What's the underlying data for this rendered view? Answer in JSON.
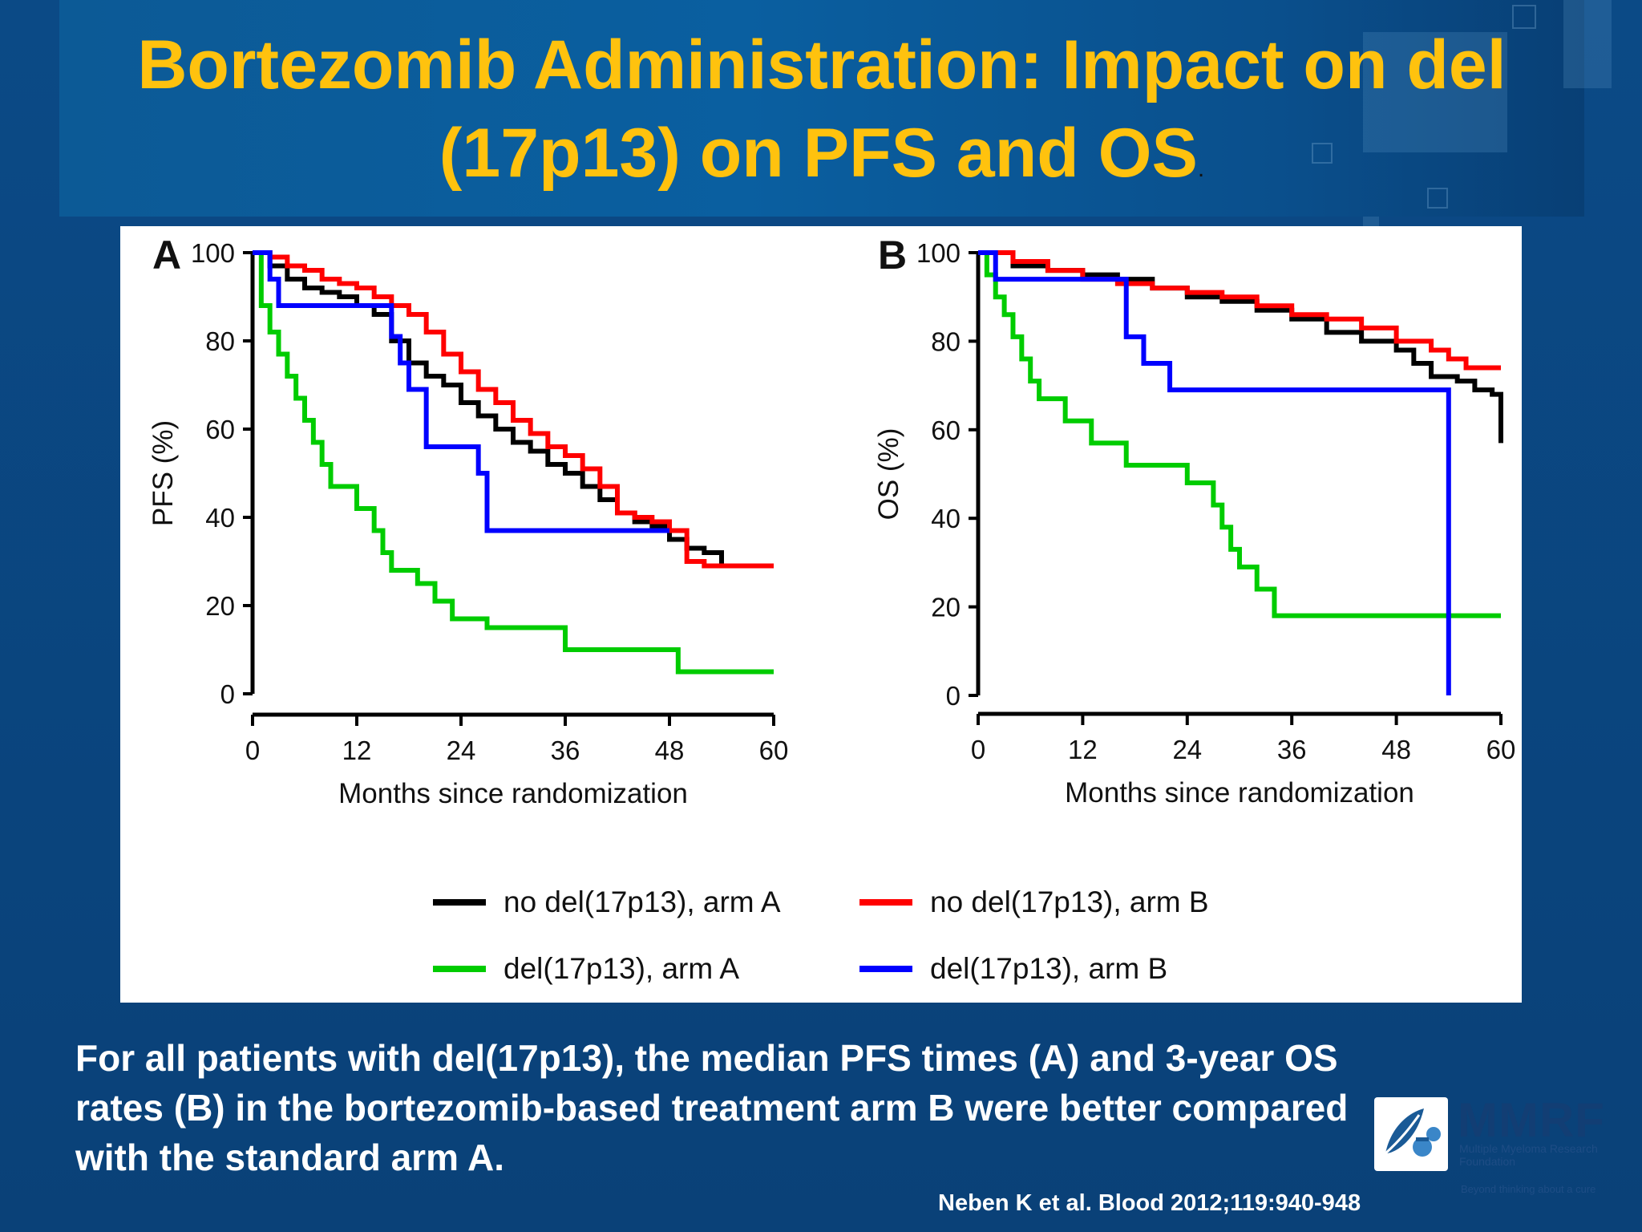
{
  "slide": {
    "title_line1": "Bortezomib Administration: Impact on del",
    "title_line2": "(17p13) on PFS and OS",
    "title_trailing": ".",
    "caption": "For all patients with del(17p13), the median PFS times (A) and 3-year OS rates (B) in the bortezomib-based treatment arm B were better compared with the standard arm A.",
    "citation": "Neben K et al. Blood 2012;119:940-948",
    "logo_text": "MMRF",
    "logo_subtitle": "Multiple Myeloma Research Foundation",
    "logo_tagline": "Beyond thinking about a cure",
    "colors": {
      "title": "#ffc20e",
      "background": "#0b4a86",
      "text": "#ffffff"
    }
  },
  "legend": {
    "entries": [
      {
        "label": "no del(17p13), arm A",
        "color": "#000000"
      },
      {
        "label": "no del(17p13), arm B",
        "color": "#ff0000"
      },
      {
        "label": "del(17p13), arm A",
        "color": "#00cc00"
      },
      {
        "label": "del(17p13), arm B",
        "color": "#0000ff"
      }
    ]
  },
  "chart_data": [
    {
      "type": "line",
      "panel_label": "A",
      "title": "",
      "xlabel": "Months since randomization",
      "ylabel": "PFS (%)",
      "xlim": [
        0,
        60
      ],
      "ylim": [
        0,
        100
      ],
      "xticks": [
        0,
        12,
        24,
        36,
        48,
        60
      ],
      "yticks": [
        0,
        20,
        40,
        60,
        80,
        100
      ],
      "grid": false,
      "step": true,
      "series": [
        {
          "name": "no del(17p13), arm A",
          "color": "#000000",
          "x": [
            0,
            2,
            4,
            6,
            8,
            10,
            12,
            14,
            16,
            18,
            20,
            22,
            24,
            26,
            28,
            30,
            32,
            34,
            36,
            38,
            40,
            42,
            44,
            46,
            48,
            50,
            52,
            54,
            60
          ],
          "y": [
            100,
            97,
            94,
            92,
            91,
            90,
            88,
            86,
            80,
            75,
            72,
            70,
            66,
            63,
            60,
            57,
            55,
            52,
            50,
            47,
            44,
            41,
            39,
            38,
            35,
            33,
            32,
            29,
            29
          ]
        },
        {
          "name": "no del(17p13), arm B",
          "color": "#ff0000",
          "x": [
            0,
            2,
            4,
            6,
            8,
            10,
            12,
            14,
            16,
            18,
            20,
            22,
            24,
            26,
            28,
            30,
            32,
            34,
            36,
            38,
            40,
            42,
            44,
            46,
            48,
            50,
            52,
            60
          ],
          "y": [
            100,
            99,
            97,
            96,
            94,
            93,
            92,
            90,
            88,
            86,
            82,
            77,
            73,
            69,
            66,
            62,
            59,
            56,
            54,
            51,
            47,
            41,
            40,
            39,
            37,
            30,
            29,
            29
          ]
        },
        {
          "name": "del(17p13), arm A",
          "color": "#00cc00",
          "x": [
            0,
            1,
            2,
            3,
            4,
            5,
            6,
            7,
            8,
            9,
            12,
            14,
            15,
            16,
            19,
            21,
            23,
            27,
            36,
            49,
            60
          ],
          "y": [
            100,
            88,
            82,
            77,
            72,
            67,
            62,
            57,
            52,
            47,
            42,
            37,
            32,
            28,
            25,
            21,
            17,
            15,
            10,
            5,
            5
          ]
        },
        {
          "name": "del(17p13), arm B",
          "color": "#0000ff",
          "x": [
            0,
            2,
            3,
            15,
            16,
            17,
            18,
            20,
            25,
            26,
            27,
            36,
            48
          ],
          "y": [
            100,
            94,
            88,
            88,
            81,
            75,
            69,
            56,
            56,
            50,
            37,
            37,
            37
          ]
        }
      ]
    },
    {
      "type": "line",
      "panel_label": "B",
      "title": "",
      "xlabel": "Months since randomization",
      "ylabel": "OS (%)",
      "xlim": [
        0,
        60
      ],
      "ylim": [
        0,
        100
      ],
      "xticks": [
        0,
        12,
        24,
        36,
        48,
        60
      ],
      "yticks": [
        0,
        20,
        40,
        60,
        80,
        100
      ],
      "grid": false,
      "step": true,
      "series": [
        {
          "name": "no del(17p13), arm A",
          "color": "#000000",
          "x": [
            0,
            4,
            8,
            12,
            16,
            20,
            24,
            28,
            32,
            36,
            40,
            44,
            48,
            50,
            52,
            55,
            57,
            59,
            60
          ],
          "y": [
            100,
            97,
            96,
            95,
            94,
            92,
            90,
            89,
            87,
            85,
            82,
            80,
            78,
            75,
            72,
            71,
            69,
            68,
            57
          ]
        },
        {
          "name": "no del(17p13), arm B",
          "color": "#ff0000",
          "x": [
            0,
            4,
            8,
            12,
            16,
            20,
            24,
            28,
            32,
            36,
            40,
            44,
            48,
            52,
            54,
            56,
            60
          ],
          "y": [
            100,
            98,
            96,
            94,
            93,
            92,
            91,
            90,
            88,
            86,
            85,
            83,
            80,
            78,
            76,
            74,
            74
          ]
        },
        {
          "name": "del(17p13), arm A",
          "color": "#00cc00",
          "x": [
            0,
            1,
            2,
            3,
            4,
            5,
            6,
            7,
            10,
            13,
            17,
            24,
            27,
            28,
            29,
            30,
            32,
            34,
            60
          ],
          "y": [
            100,
            95,
            90,
            86,
            81,
            76,
            71,
            67,
            62,
            57,
            52,
            48,
            43,
            38,
            33,
            29,
            24,
            18,
            18
          ]
        },
        {
          "name": "del(17p13), arm B",
          "color": "#0000ff",
          "x": [
            0,
            2,
            16,
            17,
            19,
            22,
            54
          ],
          "y": [
            100,
            94,
            94,
            81,
            75,
            69,
            69
          ],
          "drop_to": 0
        }
      ]
    }
  ]
}
